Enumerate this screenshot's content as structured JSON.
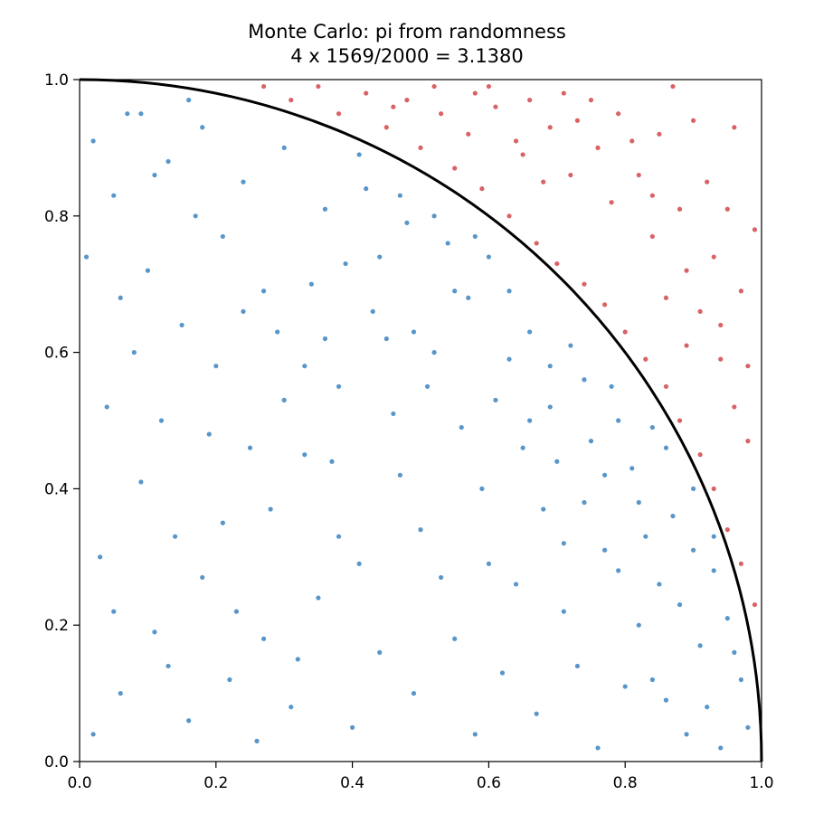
{
  "chart_data": {
    "type": "scatter",
    "title_lines": [
      "Monte Carlo: pi from randomness",
      "4 x 1569/2000 = 3.1380"
    ],
    "xlim": [
      0,
      1
    ],
    "ylim": [
      0,
      1
    ],
    "x_ticks": [
      0.0,
      0.2,
      0.4,
      0.6,
      0.8,
      1.0
    ],
    "y_ticks": [
      0.0,
      0.2,
      0.4,
      0.6,
      0.8,
      1.0
    ],
    "x_tick_labels": [
      "0.0",
      "0.2",
      "0.4",
      "0.6",
      "0.8",
      "1.0"
    ],
    "y_tick_labels": [
      "0.0",
      "0.2",
      "0.4",
      "0.6",
      "0.8",
      "1.0"
    ],
    "grid": false,
    "legend": "none",
    "aspect": "equal",
    "series": [
      {
        "points": [
          [
            0.02,
            0.91
          ],
          [
            0.05,
            0.83
          ],
          [
            0.07,
            0.95
          ],
          [
            0.1,
            0.72
          ],
          [
            0.13,
            0.88
          ],
          [
            0.15,
            0.64
          ],
          [
            0.18,
            0.93
          ],
          [
            0.21,
            0.77
          ],
          [
            0.24,
            0.85
          ],
          [
            0.27,
            0.69
          ],
          [
            0.3,
            0.9
          ],
          [
            0.33,
            0.58
          ],
          [
            0.36,
            0.81
          ],
          [
            0.39,
            0.73
          ],
          [
            0.42,
            0.84
          ],
          [
            0.45,
            0.62
          ],
          [
            0.48,
            0.79
          ],
          [
            0.51,
            0.55
          ],
          [
            0.54,
            0.76
          ],
          [
            0.57,
            0.68
          ],
          [
            0.6,
            0.74
          ],
          [
            0.63,
            0.59
          ],
          [
            0.66,
            0.63
          ],
          [
            0.69,
            0.52
          ],
          [
            0.72,
            0.61
          ],
          [
            0.75,
            0.47
          ],
          [
            0.78,
            0.55
          ],
          [
            0.81,
            0.43
          ],
          [
            0.84,
            0.49
          ],
          [
            0.87,
            0.36
          ],
          [
            0.9,
            0.4
          ],
          [
            0.93,
            0.28
          ],
          [
            0.95,
            0.21
          ],
          [
            0.97,
            0.12
          ],
          [
            0.98,
            0.05
          ],
          [
            0.04,
            0.52
          ],
          [
            0.09,
            0.41
          ],
          [
            0.14,
            0.33
          ],
          [
            0.19,
            0.48
          ],
          [
            0.23,
            0.22
          ],
          [
            0.28,
            0.37
          ],
          [
            0.32,
            0.15
          ],
          [
            0.37,
            0.44
          ],
          [
            0.41,
            0.29
          ],
          [
            0.46,
            0.51
          ],
          [
            0.5,
            0.34
          ],
          [
            0.55,
            0.18
          ],
          [
            0.59,
            0.4
          ],
          [
            0.64,
            0.26
          ],
          [
            0.68,
            0.37
          ],
          [
            0.73,
            0.14
          ],
          [
            0.77,
            0.31
          ],
          [
            0.82,
            0.2
          ],
          [
            0.86,
            0.09
          ],
          [
            0.91,
            0.17
          ],
          [
            0.06,
            0.1
          ],
          [
            0.11,
            0.19
          ],
          [
            0.16,
            0.06
          ],
          [
            0.22,
            0.12
          ],
          [
            0.26,
            0.03
          ],
          [
            0.31,
            0.08
          ],
          [
            0.35,
            0.24
          ],
          [
            0.4,
            0.05
          ],
          [
            0.44,
            0.16
          ],
          [
            0.49,
            0.1
          ],
          [
            0.53,
            0.27
          ],
          [
            0.58,
            0.04
          ],
          [
            0.62,
            0.13
          ],
          [
            0.67,
            0.07
          ],
          [
            0.71,
            0.22
          ],
          [
            0.76,
            0.02
          ],
          [
            0.8,
            0.11
          ],
          [
            0.85,
            0.26
          ],
          [
            0.89,
            0.04
          ],
          [
            0.03,
            0.3
          ],
          [
            0.08,
            0.6
          ],
          [
            0.12,
            0.5
          ],
          [
            0.17,
            0.8
          ],
          [
            0.2,
            0.58
          ],
          [
            0.25,
            0.46
          ],
          [
            0.29,
            0.63
          ],
          [
            0.34,
            0.7
          ],
          [
            0.38,
            0.55
          ],
          [
            0.43,
            0.66
          ],
          [
            0.47,
            0.42
          ],
          [
            0.52,
            0.6
          ],
          [
            0.56,
            0.49
          ],
          [
            0.61,
            0.53
          ],
          [
            0.65,
            0.46
          ],
          [
            0.7,
            0.44
          ],
          [
            0.74,
            0.38
          ],
          [
            0.79,
            0.28
          ],
          [
            0.83,
            0.33
          ],
          [
            0.88,
            0.23
          ],
          [
            0.92,
            0.08
          ],
          [
            0.01,
            0.74
          ],
          [
            0.06,
            0.68
          ],
          [
            0.11,
            0.86
          ],
          [
            0.16,
            0.97
          ],
          [
            0.21,
            0.35
          ],
          [
            0.27,
            0.18
          ],
          [
            0.33,
            0.45
          ],
          [
            0.38,
            0.33
          ],
          [
            0.44,
            0.74
          ],
          [
            0.49,
            0.63
          ],
          [
            0.55,
            0.69
          ],
          [
            0.6,
            0.29
          ],
          [
            0.66,
            0.5
          ],
          [
            0.71,
            0.32
          ],
          [
            0.77,
            0.42
          ],
          [
            0.82,
            0.38
          ],
          [
            0.86,
            0.46
          ],
          [
            0.93,
            0.33
          ],
          [
            0.96,
            0.16
          ],
          [
            0.02,
            0.04
          ],
          [
            0.05,
            0.22
          ],
          [
            0.09,
            0.95
          ],
          [
            0.13,
            0.14
          ],
          [
            0.18,
            0.27
          ],
          [
            0.24,
            0.66
          ],
          [
            0.3,
            0.53
          ],
          [
            0.36,
            0.62
          ],
          [
            0.41,
            0.89
          ],
          [
            0.47,
            0.83
          ],
          [
            0.52,
            0.8
          ],
          [
            0.58,
            0.77
          ],
          [
            0.63,
            0.69
          ],
          [
            0.69,
            0.58
          ],
          [
            0.74,
            0.56
          ],
          [
            0.79,
            0.5
          ],
          [
            0.84,
            0.12
          ],
          [
            0.9,
            0.31
          ],
          [
            0.94,
            0.02
          ]
        ],
        "color": "#3b84c0"
      },
      {
        "points": [
          [
            0.27,
            0.99
          ],
          [
            0.31,
            0.97
          ],
          [
            0.35,
            0.99
          ],
          [
            0.38,
            0.95
          ],
          [
            0.42,
            0.98
          ],
          [
            0.45,
            0.93
          ],
          [
            0.48,
            0.97
          ],
          [
            0.5,
            0.9
          ],
          [
            0.53,
            0.95
          ],
          [
            0.55,
            0.87
          ],
          [
            0.57,
            0.92
          ],
          [
            0.59,
            0.84
          ],
          [
            0.61,
            0.96
          ],
          [
            0.63,
            0.8
          ],
          [
            0.65,
            0.89
          ],
          [
            0.67,
            0.76
          ],
          [
            0.69,
            0.93
          ],
          [
            0.7,
            0.73
          ],
          [
            0.72,
            0.86
          ],
          [
            0.74,
            0.7
          ],
          [
            0.75,
            0.97
          ],
          [
            0.77,
            0.67
          ],
          [
            0.78,
            0.82
          ],
          [
            0.8,
            0.63
          ],
          [
            0.81,
            0.91
          ],
          [
            0.83,
            0.59
          ],
          [
            0.84,
            0.77
          ],
          [
            0.86,
            0.55
          ],
          [
            0.87,
            0.99
          ],
          [
            0.88,
            0.5
          ],
          [
            0.89,
            0.72
          ],
          [
            0.91,
            0.45
          ],
          [
            0.92,
            0.85
          ],
          [
            0.93,
            0.4
          ],
          [
            0.94,
            0.64
          ],
          [
            0.95,
            0.34
          ],
          [
            0.96,
            0.93
          ],
          [
            0.97,
            0.29
          ],
          [
            0.98,
            0.58
          ],
          [
            0.99,
            0.23
          ],
          [
            0.99,
            0.78
          ],
          [
            0.6,
            0.99
          ],
          [
            0.66,
            0.97
          ],
          [
            0.71,
            0.98
          ],
          [
            0.76,
            0.9
          ],
          [
            0.79,
            0.95
          ],
          [
            0.82,
            0.86
          ],
          [
            0.85,
            0.92
          ],
          [
            0.88,
            0.81
          ],
          [
            0.9,
            0.94
          ],
          [
            0.93,
            0.74
          ],
          [
            0.95,
            0.81
          ],
          [
            0.97,
            0.69
          ],
          [
            0.98,
            0.47
          ],
          [
            0.96,
            0.52
          ],
          [
            0.94,
            0.59
          ],
          [
            0.91,
            0.66
          ],
          [
            0.89,
            0.61
          ],
          [
            0.86,
            0.68
          ],
          [
            0.84,
            0.83
          ],
          [
            0.73,
            0.94
          ],
          [
            0.68,
            0.85
          ],
          [
            0.64,
            0.91
          ],
          [
            0.58,
            0.98
          ],
          [
            0.52,
            0.99
          ],
          [
            0.46,
            0.96
          ]
        ],
        "color": "#d2474a"
      }
    ],
    "curve": {
      "type": "quarter-circle",
      "radius": 1,
      "color": "#000000"
    }
  }
}
